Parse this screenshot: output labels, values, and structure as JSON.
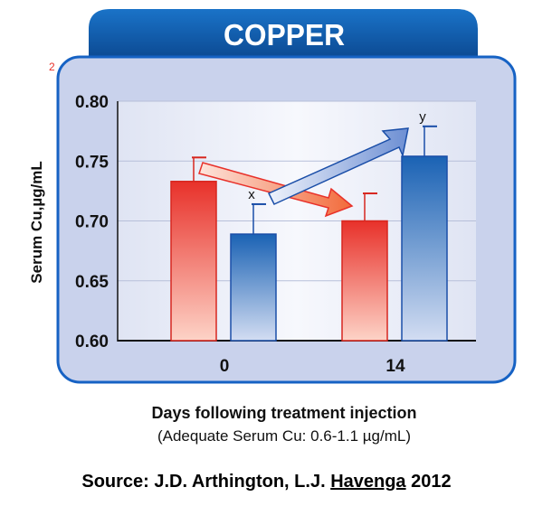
{
  "chart_data": {
    "type": "bar",
    "title": "COPPER",
    "ylabel": "Serum Cu,µg/mL",
    "xlabel": "Days following treatment injection",
    "subtitle": "(Adequate Serum Cu: 0.6-1.1 µg/mL)",
    "categories": [
      "0",
      "14"
    ],
    "ylim": [
      0.6,
      0.8
    ],
    "yticks": [
      "0.60",
      "0.65",
      "0.70",
      "0.75",
      "0.80"
    ],
    "grid": true,
    "series": [
      {
        "values": [
          0.733,
          0.7
        ],
        "errors": [
          0.02,
          0.023
        ],
        "color": "#e8312a"
      },
      {
        "values": [
          0.689,
          0.754
        ],
        "errors": [
          0.025,
          0.025
        ],
        "color": "#1a62b4"
      }
    ],
    "annotations": [
      {
        "text": "x",
        "category": "0",
        "series": 1
      },
      {
        "text": "y",
        "category": "14",
        "series": 1
      }
    ],
    "corner_label": "2"
  },
  "source": {
    "prefix": "Source: J.D. Arthington, L.J. ",
    "underlined": "Havenga",
    "suffix": "  2012"
  }
}
